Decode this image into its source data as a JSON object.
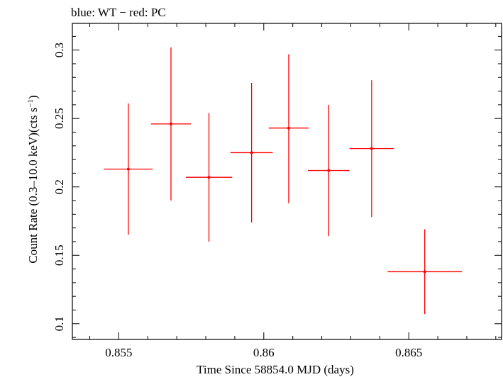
{
  "chart_data": {
    "type": "scatter",
    "title": "blue: WT − red: PC",
    "xlabel": "Time Since 58854.0 MJD (days)",
    "ylabel_main": "Count Rate (0.3–10.0 keV)(cts s",
    "ylabel_sup": "−1",
    "ylabel_close": ")",
    "xlim": [
      0.8534,
      0.8682
    ],
    "ylim": [
      0.0885,
      0.3195
    ],
    "x_ticks": [
      0.855,
      0.86,
      0.865
    ],
    "x_tick_labels": [
      "0.855",
      "0.86",
      "0.865"
    ],
    "y_ticks": [
      0.1,
      0.15,
      0.2,
      0.25,
      0.3
    ],
    "y_tick_labels": [
      "0.1",
      "0.15",
      "0.2",
      "0.25",
      "0.3"
    ],
    "series": [
      {
        "name": "PC",
        "color": "#ff0000",
        "points": [
          {
            "x": 0.85533,
            "xerr": 0.00084,
            "y": 0.213,
            "yerr_lo": 0.048,
            "yerr_hi": 0.048
          },
          {
            "x": 0.8568,
            "xerr": 0.00069,
            "y": 0.246,
            "yerr_lo": 0.056,
            "yerr_hi": 0.056
          },
          {
            "x": 0.85811,
            "xerr": 0.0008,
            "y": 0.207,
            "yerr_lo": 0.047,
            "yerr_hi": 0.047
          },
          {
            "x": 0.85958,
            "xerr": 0.00073,
            "y": 0.225,
            "yerr_lo": 0.051,
            "yerr_hi": 0.051
          },
          {
            "x": 0.86086,
            "xerr": 0.00069,
            "y": 0.243,
            "yerr_lo": 0.055,
            "yerr_hi": 0.054
          },
          {
            "x": 0.86224,
            "xerr": 0.00072,
            "y": 0.212,
            "yerr_lo": 0.048,
            "yerr_hi": 0.048
          },
          {
            "x": 0.86372,
            "xerr": 0.00076,
            "y": 0.228,
            "yerr_lo": 0.05,
            "yerr_hi": 0.05
          },
          {
            "x": 0.86555,
            "xerr": 0.00128,
            "y": 0.138,
            "yerr_lo": 0.031,
            "yerr_hi": 0.031
          }
        ]
      }
    ]
  }
}
